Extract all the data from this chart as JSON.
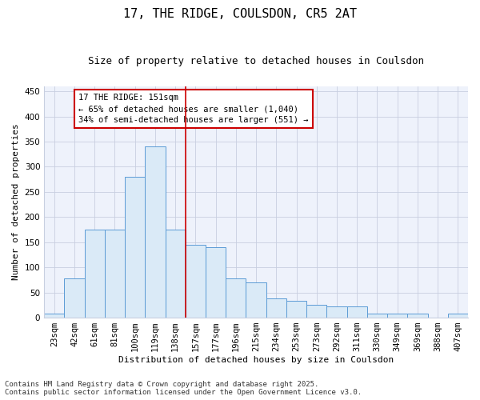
{
  "title": "17, THE RIDGE, COULSDON, CR5 2AT",
  "subtitle": "Size of property relative to detached houses in Coulsdon",
  "xlabel": "Distribution of detached houses by size in Coulsdon",
  "ylabel": "Number of detached properties",
  "categories": [
    "23sqm",
    "42sqm",
    "61sqm",
    "81sqm",
    "100sqm",
    "119sqm",
    "138sqm",
    "157sqm",
    "177sqm",
    "196sqm",
    "215sqm",
    "234sqm",
    "253sqm",
    "273sqm",
    "292sqm",
    "311sqm",
    "330sqm",
    "349sqm",
    "369sqm",
    "388sqm",
    "407sqm"
  ],
  "values": [
    8,
    78,
    175,
    175,
    280,
    340,
    175,
    145,
    140,
    78,
    70,
    38,
    33,
    26,
    22,
    22,
    8,
    8,
    8,
    0,
    8
  ],
  "bar_color": "#daeaf7",
  "bar_edge_color": "#5b9bd5",
  "annotation_line1": "17 THE RIDGE: 151sqm",
  "annotation_line2": "← 65% of detached houses are smaller (1,040)",
  "annotation_line3": "34% of semi-detached houses are larger (551) →",
  "annotation_box_facecolor": "white",
  "annotation_box_edgecolor": "#cc0000",
  "vline_color": "#cc0000",
  "vline_x_index": 6.5,
  "footer_line1": "Contains HM Land Registry data © Crown copyright and database right 2025.",
  "footer_line2": "Contains public sector information licensed under the Open Government Licence v3.0.",
  "plot_bg_color": "#eef2fb",
  "fig_bg_color": "#ffffff",
  "grid_color": "#c8cfe0",
  "ylim": [
    0,
    460
  ],
  "yticks": [
    0,
    50,
    100,
    150,
    200,
    250,
    300,
    350,
    400,
    450
  ],
  "title_fontsize": 11,
  "subtitle_fontsize": 9,
  "axis_label_fontsize": 8,
  "tick_fontsize": 7.5,
  "footer_fontsize": 6.5,
  "annotation_fontsize": 7.5
}
